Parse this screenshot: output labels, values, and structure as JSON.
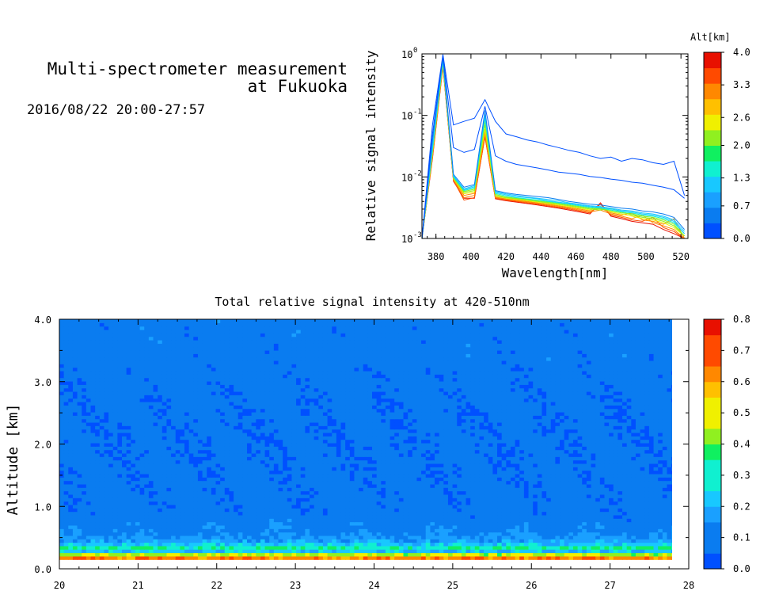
{
  "header": {
    "title_line1": "Multi-spectrometer measurement",
    "title_line2": "at Fukuoka",
    "datetime": "2016/08/22 20:00-27:57"
  },
  "colors": {
    "scale": [
      "#0050ff",
      "#0a7cf0",
      "#1aa0ff",
      "#18c8ff",
      "#10f0d0",
      "#10f060",
      "#90f020",
      "#f0f000",
      "#ffc000",
      "#ff8800",
      "#ff4a00",
      "#e81000"
    ]
  },
  "chart_data": [
    {
      "type": "line",
      "xlabel": "Wavelength[nm]",
      "ylabel": "Relative signal intensity",
      "xlim": [
        372,
        524
      ],
      "ylim": [
        0.001,
        1
      ],
      "yscale": "log",
      "x_ticks": [
        380,
        400,
        420,
        440,
        460,
        480,
        500,
        520
      ],
      "y_ticks": [
        0.001,
        0.01,
        0.1,
        1
      ],
      "y_tick_labels": [
        "10",
        "10",
        "10",
        "10"
      ],
      "y_tick_exponents": [
        "-3",
        "-2",
        "-1",
        "0"
      ],
      "x": [
        372,
        378,
        384,
        390,
        396,
        402,
        408,
        414,
        420,
        426,
        432,
        438,
        444,
        450,
        456,
        462,
        468,
        474,
        480,
        486,
        492,
        498,
        504,
        510,
        516,
        522
      ],
      "colorbar": {
        "label": "Alt[km]",
        "ticks": [
          0.0,
          0.7,
          1.3,
          2.0,
          2.6,
          3.3,
          4.0
        ],
        "tick_labels": [
          "0.0",
          "0.7",
          "1.3",
          "2.0",
          "2.6",
          "3.3",
          "4.0"
        ],
        "range": [
          0,
          4
        ]
      },
      "series": [
        {
          "altitude": 0.0,
          "values": [
            0.001,
            0.07,
            0.98,
            0.07,
            0.08,
            0.09,
            0.18,
            0.08,
            0.05,
            0.045,
            0.04,
            0.037,
            0.033,
            0.03,
            0.027,
            0.025,
            0.022,
            0.02,
            0.021,
            0.018,
            0.02,
            0.019,
            0.017,
            0.016,
            0.018,
            0.005
          ]
        },
        {
          "altitude": 0.3,
          "values": [
            0.001,
            0.05,
            0.95,
            0.03,
            0.025,
            0.028,
            0.14,
            0.022,
            0.018,
            0.016,
            0.015,
            0.014,
            0.013,
            0.012,
            0.0115,
            0.011,
            0.0102,
            0.0098,
            0.0092,
            0.0088,
            0.0082,
            0.0079,
            0.0073,
            0.0068,
            0.0062,
            0.0045
          ]
        },
        {
          "altitude": 0.6,
          "values": [
            0.001,
            0.04,
            0.9,
            0.011,
            0.0068,
            0.0075,
            0.12,
            0.006,
            0.0055,
            0.0052,
            0.005,
            0.0048,
            0.0046,
            0.0043,
            0.004,
            0.0038,
            0.0036,
            0.0035,
            0.0033,
            0.0031,
            0.003,
            0.0028,
            0.0027,
            0.0025,
            0.0022,
            0.0014
          ]
        },
        {
          "altitude": 1.0,
          "values": [
            0.001,
            0.035,
            0.85,
            0.0105,
            0.0064,
            0.0072,
            0.11,
            0.0058,
            0.0053,
            0.005,
            0.0047,
            0.0045,
            0.0043,
            0.0041,
            0.0038,
            0.0036,
            0.0034,
            0.0033,
            0.0031,
            0.0029,
            0.0028,
            0.0026,
            0.0025,
            0.0023,
            0.002,
            0.0013
          ]
        },
        {
          "altitude": 1.3,
          "values": [
            0.001,
            0.03,
            0.8,
            0.0102,
            0.0062,
            0.0069,
            0.1,
            0.0056,
            0.0051,
            0.0048,
            0.0046,
            0.0044,
            0.0041,
            0.0039,
            0.0037,
            0.0035,
            0.0033,
            0.0032,
            0.003,
            0.0028,
            0.0027,
            0.0025,
            0.0024,
            0.0022,
            0.0019,
            0.0012
          ]
        },
        {
          "altitude": 1.6,
          "values": [
            0.001,
            0.028,
            0.78,
            0.01,
            0.006,
            0.0066,
            0.09,
            0.0054,
            0.0049,
            0.0046,
            0.0044,
            0.0042,
            0.004,
            0.0038,
            0.0036,
            0.0034,
            0.0032,
            0.0031,
            0.0029,
            0.0027,
            0.0026,
            0.0024,
            0.0023,
            0.0021,
            0.0018,
            0.0012
          ]
        },
        {
          "altitude": 2.0,
          "values": [
            0.001,
            0.026,
            0.75,
            0.0098,
            0.0058,
            0.0063,
            0.08,
            0.0052,
            0.0047,
            0.0045,
            0.0043,
            0.0041,
            0.0039,
            0.0037,
            0.0035,
            0.0033,
            0.0031,
            0.003,
            0.0028,
            0.0026,
            0.0025,
            0.0023,
            0.0022,
            0.002,
            0.0017,
            0.0011
          ]
        },
        {
          "altitude": 2.3,
          "values": [
            0.001,
            0.025,
            0.72,
            0.0096,
            0.0056,
            0.006,
            0.07,
            0.005,
            0.0046,
            0.0044,
            0.0042,
            0.004,
            0.0038,
            0.0036,
            0.0034,
            0.0032,
            0.003,
            0.0029,
            0.0031,
            0.0027,
            0.0024,
            0.0022,
            0.0021,
            0.0019,
            0.0016,
            0.0011
          ]
        },
        {
          "altitude": 2.6,
          "values": [
            0.001,
            0.024,
            0.7,
            0.0094,
            0.0053,
            0.0057,
            0.06,
            0.0049,
            0.0045,
            0.0043,
            0.0041,
            0.0039,
            0.0037,
            0.0035,
            0.0033,
            0.0031,
            0.0029,
            0.0033,
            0.0027,
            0.0025,
            0.0023,
            0.0021,
            0.002,
            0.0018,
            0.0015,
            0.0011
          ]
        },
        {
          "altitude": 3.0,
          "values": [
            0.001,
            0.023,
            0.68,
            0.0092,
            0.005,
            0.0054,
            0.055,
            0.0047,
            0.0044,
            0.0042,
            0.004,
            0.0038,
            0.0036,
            0.0034,
            0.0032,
            0.003,
            0.0028,
            0.0031,
            0.0026,
            0.0024,
            0.0026,
            0.002,
            0.0019,
            0.0017,
            0.0021,
            0.001
          ]
        },
        {
          "altitude": 3.3,
          "values": [
            0.001,
            0.022,
            0.66,
            0.009,
            0.0046,
            0.005,
            0.05,
            0.0046,
            0.0043,
            0.0041,
            0.0039,
            0.0037,
            0.0035,
            0.0033,
            0.0031,
            0.0029,
            0.0027,
            0.0029,
            0.0025,
            0.0023,
            0.0021,
            0.0024,
            0.0018,
            0.0016,
            0.0014,
            0.001
          ]
        },
        {
          "altitude": 3.6,
          "values": [
            0.001,
            0.021,
            0.64,
            0.0088,
            0.0042,
            0.0046,
            0.045,
            0.0045,
            0.0042,
            0.004,
            0.0038,
            0.0036,
            0.0034,
            0.0032,
            0.003,
            0.0028,
            0.0026,
            0.0036,
            0.0024,
            0.0022,
            0.002,
            0.0019,
            0.0022,
            0.0015,
            0.0013,
            0.001
          ]
        },
        {
          "altitude": 4.0,
          "values": [
            0.001,
            0.02,
            0.62,
            0.0085,
            0.0045,
            0.0045,
            0.045,
            0.0044,
            0.0041,
            0.0039,
            0.0037,
            0.0035,
            0.0033,
            0.0031,
            0.0029,
            0.0027,
            0.0025,
            0.0038,
            0.0023,
            0.0021,
            0.0019,
            0.0018,
            0.0017,
            0.0014,
            0.0012,
            0.001
          ]
        }
      ]
    },
    {
      "type": "heatmap",
      "title": "Total relative signal intensity at 420-510nm",
      "xlabel": "",
      "ylabel": "Altitude [km]",
      "xlim": [
        20,
        28
      ],
      "ylim": [
        0,
        4
      ],
      "x_ticks": [
        20,
        21,
        22,
        23,
        24,
        25,
        26,
        27,
        28
      ],
      "x_tick_labels": [
        "20",
        "21",
        "22",
        "23",
        "24",
        "25",
        "26",
        "27",
        "28"
      ],
      "y_ticks": [
        0,
        1,
        2,
        3,
        4
      ],
      "y_tick_labels": [
        "0.0",
        "1.0",
        "2.0",
        "3.0",
        "4.0"
      ],
      "data_x_range": [
        20.0,
        27.95
      ],
      "data_y_range": [
        0.15,
        4.0
      ],
      "colorbar": {
        "ticks": [
          0.0,
          0.1,
          0.2,
          0.3,
          0.4,
          0.5,
          0.6,
          0.7,
          0.8
        ],
        "tick_labels": [
          "0.0",
          "0.1",
          "0.2",
          "0.3",
          "0.4",
          "0.5",
          "0.6",
          "0.7",
          "0.8"
        ],
        "range": [
          0,
          0.8
        ]
      },
      "altitude_profile": {
        "altitude": [
          0.15,
          0.2,
          0.25,
          0.3,
          0.35,
          0.4,
          0.5,
          0.6,
          0.8,
          1.0,
          2.0,
          3.0,
          3.5,
          4.0
        ],
        "value": [
          0.5,
          0.75,
          0.3,
          0.2,
          0.35,
          0.22,
          0.14,
          0.12,
          0.1,
          0.09,
          0.08,
          0.09,
          0.1,
          0.1
        ]
      }
    }
  ]
}
